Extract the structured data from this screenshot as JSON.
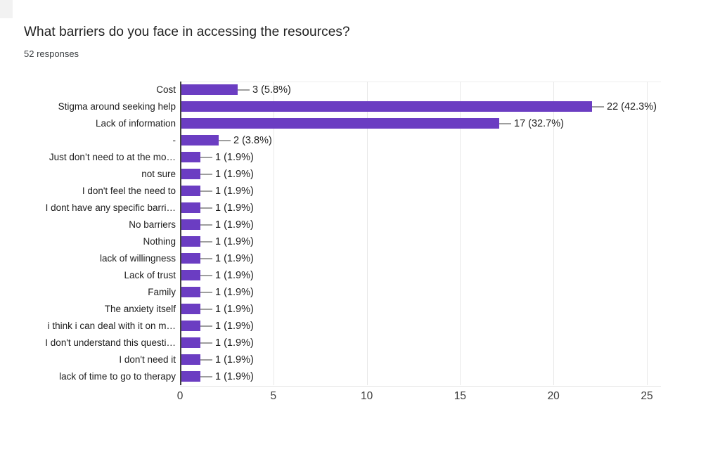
{
  "header": {
    "title": "What barriers do you face in accessing the resources?",
    "subtitle": "52 responses"
  },
  "chart_data": {
    "type": "bar",
    "orientation": "horizontal",
    "title": "What barriers do you face in accessing the resources?",
    "subtitle": "52 responses",
    "categories": [
      "Cost",
      "Stigma around seeking help",
      "Lack of information",
      "-",
      "Just don’t need to at the mo…",
      "not sure",
      "I don't feel the need to",
      "I dont have any specific barri…",
      "No barriers",
      "Nothing",
      "lack of willingness",
      "Lack of trust",
      "Family",
      "The anxiety itself",
      "i think i can deal with it on m…",
      "I don't understand this questi…",
      "I don't need it",
      "lack of time to go to therapy"
    ],
    "values": [
      3,
      22,
      17,
      2,
      1,
      1,
      1,
      1,
      1,
      1,
      1,
      1,
      1,
      1,
      1,
      1,
      1,
      1
    ],
    "value_labels": [
      "3 (5.8%)",
      "22 (42.3%)",
      "17 (32.7%)",
      "2 (3.8%)",
      "1 (1.9%)",
      "1 (1.9%)",
      "1 (1.9%)",
      "1 (1.9%)",
      "1 (1.9%)",
      "1 (1.9%)",
      "1 (1.9%)",
      "1 (1.9%)",
      "1 (1.9%)",
      "1 (1.9%)",
      "1 (1.9%)",
      "1 (1.9%)",
      "1 (1.9%)",
      "1 (1.9%)"
    ],
    "xlabel": "",
    "ylabel": "",
    "xlim": [
      0,
      25
    ],
    "xticks": [
      0,
      5,
      10,
      15,
      20,
      25
    ],
    "grid": true,
    "legend_position": "none",
    "colors": {
      "bar": "#6b3dc2",
      "gridline": "#e8e8e8",
      "axis": "#424242",
      "connector": "#9e9e9e",
      "text": "#1d1d1d"
    }
  }
}
